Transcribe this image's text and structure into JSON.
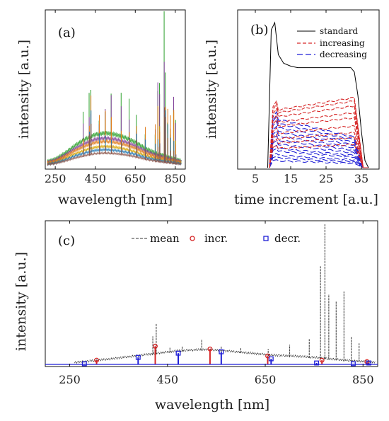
{
  "colors": {
    "standard": "#000000",
    "increasing": "#d62728",
    "decreasing": "#1f1fd6",
    "mean": "#333333",
    "spectra": [
      "#2ca02c",
      "#7f3f98",
      "#d9a400",
      "#e07b1a",
      "#1f77b4",
      "#8c564b"
    ]
  },
  "chart_data": [
    {
      "id": "a",
      "type": "line",
      "panel_label": "(a)",
      "xlabel": "wavelength [nm]",
      "ylabel": "intensity [a.u.]",
      "xlim": [
        200,
        900
      ],
      "ylim": [
        0,
        1
      ],
      "x_ticks": [
        250,
        450,
        650,
        850
      ],
      "baseline": {
        "x": [
          200,
          250,
          300,
          350,
          400,
          450,
          500,
          550,
          600,
          650,
          700,
          750,
          800,
          850,
          880
        ],
        "y": [
          0.01,
          0.03,
          0.07,
          0.12,
          0.16,
          0.19,
          0.2,
          0.19,
          0.17,
          0.14,
          0.1,
          0.07,
          0.05,
          0.03,
          0.02
        ]
      },
      "series_scale": [
        1.0,
        0.85,
        0.6,
        0.75,
        0.5,
        0.4
      ],
      "peaks": [
        {
          "x": 390,
          "y": 0.2
        },
        {
          "x": 420,
          "y": 0.35
        },
        {
          "x": 428,
          "y": 0.55
        },
        {
          "x": 470,
          "y": 0.25
        },
        {
          "x": 500,
          "y": 0.3
        },
        {
          "x": 530,
          "y": 0.35
        },
        {
          "x": 580,
          "y": 0.3
        },
        {
          "x": 620,
          "y": 0.3
        },
        {
          "x": 656,
          "y": 0.3
        },
        {
          "x": 700,
          "y": 0.25
        },
        {
          "x": 750,
          "y": 0.3
        },
        {
          "x": 763,
          "y": 0.6
        },
        {
          "x": 772,
          "y": 0.5
        },
        {
          "x": 795,
          "y": 1.0
        },
        {
          "x": 801,
          "y": 0.75
        },
        {
          "x": 812,
          "y": 0.5
        },
        {
          "x": 826,
          "y": 0.4
        },
        {
          "x": 842,
          "y": 0.55
        },
        {
          "x": 852,
          "y": 0.3
        }
      ]
    },
    {
      "id": "b",
      "type": "line",
      "panel_label": "(b)",
      "xlabel": "time increment [a.u.]",
      "ylabel": "intensity [a.u.]",
      "xlim": [
        0,
        40
      ],
      "ylim": [
        0,
        1
      ],
      "x_ticks": [
        5,
        15,
        25,
        35
      ],
      "legend": [
        "standard",
        "increasing",
        "decreasing"
      ],
      "legend_position": "top-right",
      "series": [
        {
          "name": "standard",
          "x": [
            8.5,
            9.5,
            10.5,
            11.5,
            13,
            15,
            17,
            20,
            25,
            30,
            32,
            33,
            34,
            35,
            36,
            37
          ],
          "y": [
            0,
            0.95,
            1.0,
            0.78,
            0.72,
            0.7,
            0.69,
            0.69,
            0.69,
            0.69,
            0.69,
            0.66,
            0.5,
            0.25,
            0.05,
            0
          ]
        }
      ],
      "increasing_levels": [
        0.42,
        0.4,
        0.37,
        0.33,
        0.3,
        0.25,
        0.21,
        0.18,
        0.14
      ],
      "decreasing_levels": [
        0.35,
        0.32,
        0.29,
        0.26,
        0.23,
        0.2,
        0.17,
        0.14,
        0.12,
        0.09,
        0.07,
        0.05
      ]
    },
    {
      "id": "c",
      "type": "line",
      "panel_label": "(c)",
      "xlabel": "wavelength [nm]",
      "ylabel": "intensity [a.u.]",
      "xlim": [
        200,
        880
      ],
      "ylim": [
        0,
        1
      ],
      "x_ticks": [
        250,
        450,
        650,
        850
      ],
      "legend": [
        "mean",
        "incr.",
        "decr."
      ],
      "legend_position": "top-center",
      "mean_peaks": [
        {
          "x": 420,
          "y": 0.2
        },
        {
          "x": 427,
          "y": 0.29
        },
        {
          "x": 455,
          "y": 0.12
        },
        {
          "x": 480,
          "y": 0.13
        },
        {
          "x": 520,
          "y": 0.18
        },
        {
          "x": 560,
          "y": 0.13
        },
        {
          "x": 600,
          "y": 0.12
        },
        {
          "x": 656,
          "y": 0.11
        },
        {
          "x": 700,
          "y": 0.14
        },
        {
          "x": 740,
          "y": 0.18
        },
        {
          "x": 763,
          "y": 0.7
        },
        {
          "x": 772,
          "y": 1.0
        },
        {
          "x": 780,
          "y": 0.5
        },
        {
          "x": 795,
          "y": 0.45
        },
        {
          "x": 811,
          "y": 0.52
        },
        {
          "x": 826,
          "y": 0.2
        },
        {
          "x": 842,
          "y": 0.15
        }
      ],
      "increasing": [
        {
          "x": 305,
          "y": 0.03
        },
        {
          "x": 425,
          "y": 0.13
        },
        {
          "x": 537,
          "y": 0.11
        },
        {
          "x": 655,
          "y": 0.06
        },
        {
          "x": 766,
          "y": 0.03
        },
        {
          "x": 858,
          "y": 0.02
        }
      ],
      "decreasing": [
        {
          "x": 280,
          "y": 0.005
        },
        {
          "x": 390,
          "y": 0.05
        },
        {
          "x": 472,
          "y": 0.08
        },
        {
          "x": 560,
          "y": 0.09
        },
        {
          "x": 662,
          "y": 0.04
        },
        {
          "x": 755,
          "y": 0.01
        },
        {
          "x": 830,
          "y": 0.005
        },
        {
          "x": 862,
          "y": 0.01
        }
      ]
    }
  ]
}
